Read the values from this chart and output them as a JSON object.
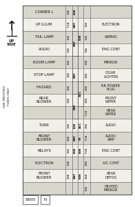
{
  "left_labels": [
    "CORNER L",
    "I/P ILLUM",
    "TAIL LAMP",
    "AUDIO",
    "ROOM LAMP",
    "STOP LAMP",
    "HAZARD",
    "REAR\nBLOWER",
    "",
    "TURN",
    "FRONT\nBLOWER",
    "RELAYS",
    "ELECTRON",
    "FRONT\nBLOWER",
    ""
  ],
  "col1_amps": [
    "10A",
    "7.5A",
    "10A",
    "10A",
    "15A",
    "15A",
    "10A",
    "15A",
    "",
    "10A",
    "20A",
    "10A",
    "10A",
    "20A",
    ""
  ],
  "col2_spans": [
    [
      0,
      1,
      "IGN"
    ],
    [
      1,
      1,
      "BAT"
    ],
    [
      2,
      2,
      "BAT"
    ],
    [
      4,
      3,
      "BAT"
    ],
    [
      7,
      2,
      "BAT"
    ],
    [
      9,
      1,
      "IGN"
    ],
    [
      10,
      1,
      "BAT"
    ],
    [
      11,
      1,
      "IGN"
    ],
    [
      13,
      1,
      "BAT"
    ]
  ],
  "col3_spans": [
    [
      2,
      1,
      "IGN"
    ],
    [
      6,
      2,
      "ACC"
    ],
    [
      9,
      1,
      "ACC"
    ],
    [
      10,
      1,
      "ST"
    ],
    [
      11,
      1,
      "IGN"
    ],
    [
      13,
      1,
      "IGN"
    ]
  ],
  "col4_amps": [
    "",
    "10A",
    "10A",
    "10A",
    "10A",
    "20A",
    "20A",
    "20A",
    "7.5A",
    "20A",
    "7.5A",
    "7.5A",
    "20A",
    "20A",
    "10A"
  ],
  "right_labels": [
    "",
    "ELECTRON",
    "AIRBAG",
    "ENG CONT",
    "MIRROR",
    "CIGAR\nLIGHTER",
    "RR POWER\nPLUG",
    "FRONT\nWIPER",
    "REAR\nWIPER",
    "AUDIO",
    "AUDIO\nAMP",
    "ENG CONT",
    "A/C CONT",
    "REAR\nDEFOG",
    "HEATED\nMIRROR"
  ],
  "n_rows": 15,
  "bg_color": "#f0efe8",
  "line_color": "#555555",
  "text_color": "#111111"
}
